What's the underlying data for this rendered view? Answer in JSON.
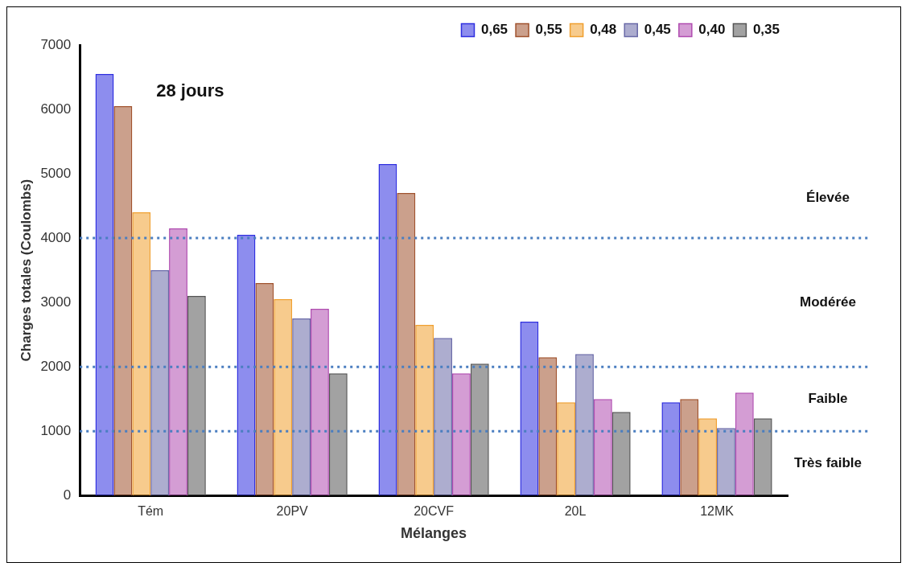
{
  "chart_data": {
    "type": "bar",
    "title": "28 jours",
    "xlabel": "Mélanges",
    "ylabel": "Charges totales (Coulombs)",
    "categories": [
      "Tém",
      "20PV",
      "20CVF",
      "20L",
      "12MK"
    ],
    "series": [
      {
        "name": "0,65",
        "color": "#2f2fe0",
        "values": [
          6550,
          4050,
          5150,
          2700,
          1450
        ]
      },
      {
        "name": "0,55",
        "color": "#a0522d",
        "values": [
          6050,
          3300,
          4700,
          2150,
          1500
        ]
      },
      {
        "name": "0,48",
        "color": "#f0a030",
        "values": [
          4400,
          3050,
          2650,
          1450,
          1200
        ]
      },
      {
        "name": "0,45",
        "color": "#6a6aa8",
        "values": [
          3500,
          2750,
          2450,
          2200,
          1050
        ]
      },
      {
        "name": "0,40",
        "color": "#b04cb0",
        "values": [
          4150,
          2900,
          1900,
          1500,
          1600
        ]
      },
      {
        "name": "0,35",
        "color": "#555555",
        "values": [
          3100,
          1900,
          2050,
          1300,
          1200
        ]
      }
    ],
    "ylim": [
      0,
      7000
    ],
    "yticks": [
      0,
      1000,
      2000,
      3000,
      4000,
      5000,
      6000,
      7000
    ],
    "grid": false,
    "legend": "top",
    "ref_lines": [
      {
        "axis": "y",
        "value": 4000,
        "color": "#4a7ec0",
        "line_style": "dotted"
      },
      {
        "axis": "y",
        "value": 2000,
        "color": "#4a7ec0",
        "line_style": "dotted"
      },
      {
        "axis": "y",
        "value": 1000,
        "color": "#4a7ec0",
        "line_style": "dotted"
      }
    ],
    "annotations": [
      "Élevée",
      "Modérée",
      "Faible",
      "Très faible"
    ]
  }
}
